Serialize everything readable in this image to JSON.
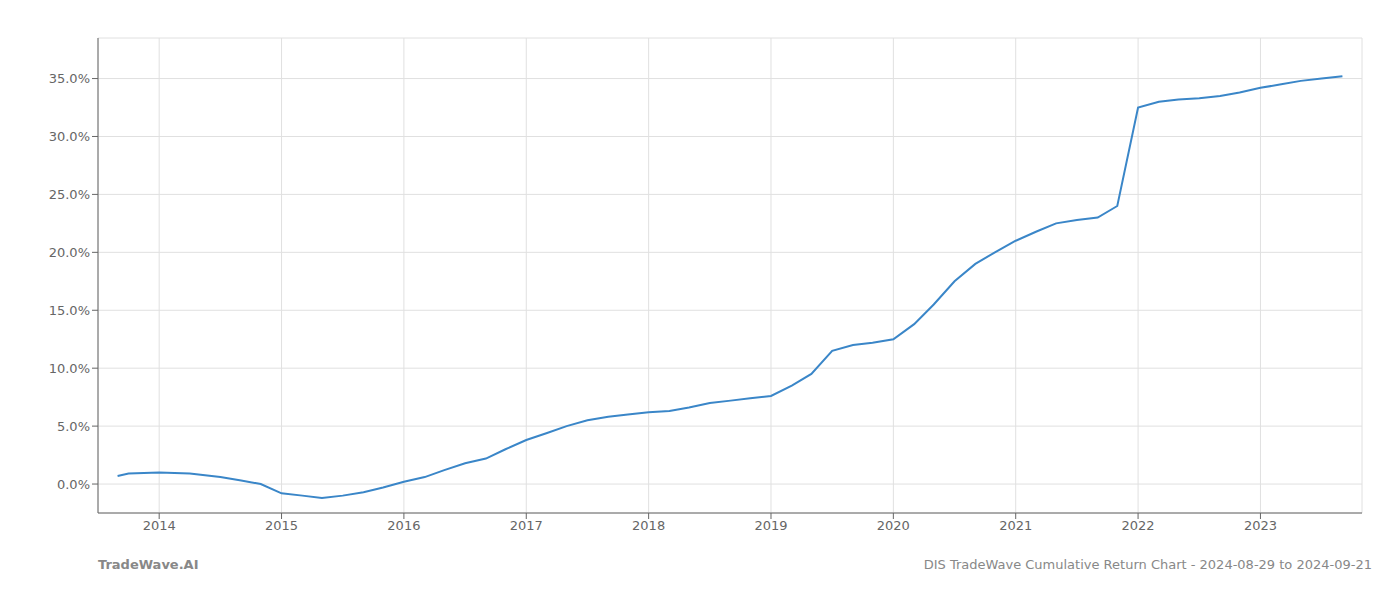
{
  "chart_data": {
    "type": "line",
    "x": [
      2013.66,
      2013.75,
      2014.0,
      2014.25,
      2014.5,
      2014.67,
      2014.83,
      2015.0,
      2015.17,
      2015.33,
      2015.5,
      2015.67,
      2015.83,
      2016.0,
      2016.17,
      2016.33,
      2016.5,
      2016.67,
      2016.83,
      2017.0,
      2017.17,
      2017.33,
      2017.5,
      2017.67,
      2017.83,
      2018.0,
      2018.17,
      2018.33,
      2018.5,
      2018.67,
      2018.83,
      2019.0,
      2019.17,
      2019.33,
      2019.5,
      2019.67,
      2019.83,
      2020.0,
      2020.17,
      2020.33,
      2020.5,
      2020.67,
      2020.83,
      2021.0,
      2021.17,
      2021.33,
      2021.5,
      2021.67,
      2021.83,
      2022.0,
      2022.17,
      2022.33,
      2022.5,
      2022.67,
      2022.83,
      2023.0,
      2023.17,
      2023.33,
      2023.5,
      2023.67
    ],
    "values": [
      0.007,
      0.009,
      0.01,
      0.009,
      0.006,
      0.003,
      0.0,
      -0.008,
      -0.01,
      -0.012,
      -0.01,
      -0.007,
      -0.003,
      0.002,
      0.006,
      0.012,
      0.018,
      0.022,
      0.03,
      0.038,
      0.044,
      0.05,
      0.055,
      0.058,
      0.06,
      0.062,
      0.063,
      0.066,
      0.07,
      0.072,
      0.074,
      0.076,
      0.085,
      0.095,
      0.115,
      0.12,
      0.122,
      0.125,
      0.138,
      0.155,
      0.175,
      0.19,
      0.2,
      0.21,
      0.218,
      0.225,
      0.228,
      0.23,
      0.24,
      0.325,
      0.33,
      0.332,
      0.333,
      0.335,
      0.338,
      0.342,
      0.345,
      0.348,
      0.35,
      0.352
    ],
    "color": "#3a86c8",
    "xlim": [
      2013.5,
      2023.83
    ],
    "xticks": [
      2014,
      2015,
      2016,
      2017,
      2018,
      2019,
      2020,
      2021,
      2022,
      2023
    ],
    "ylim": [
      -0.025,
      0.385
    ],
    "yticks": [
      {
        "value": 0.0,
        "label": "0.0%"
      },
      {
        "value": 0.05,
        "label": "5.0%"
      },
      {
        "value": 0.1,
        "label": "10.0%"
      },
      {
        "value": 0.15,
        "label": "15.0%"
      },
      {
        "value": 0.2,
        "label": "20.0%"
      },
      {
        "value": 0.25,
        "label": "25.0%"
      },
      {
        "value": 0.3,
        "label": "30.0%"
      },
      {
        "value": 0.35,
        "label": "35.0%"
      }
    ],
    "grid": true,
    "annotations": [
      "TradeWave.AI",
      "DIS TradeWave Cumulative Return Chart - 2024-08-29 to 2024-09-21"
    ]
  }
}
